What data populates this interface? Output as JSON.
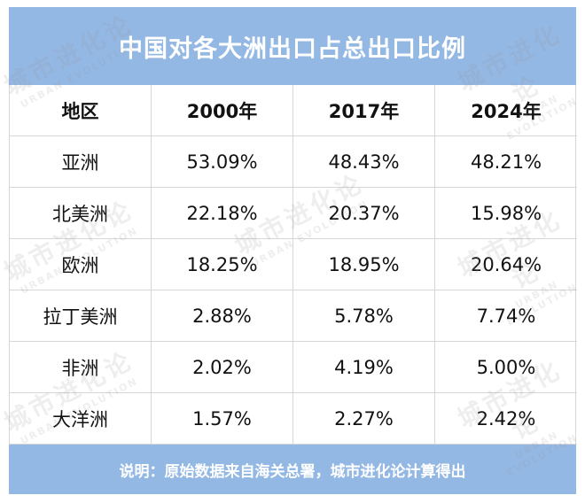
{
  "title": "中国对各大洲出口占总出口比例",
  "table": {
    "header": [
      "地区",
      "2000年",
      "2017年",
      "2024年"
    ],
    "rows": [
      [
        "亚洲",
        "53.09%",
        "48.43%",
        "48.21%"
      ],
      [
        "北美洲",
        "22.18%",
        "20.37%",
        "15.98%"
      ],
      [
        "欧洲",
        "18.25%",
        "18.95%",
        "20.64%"
      ],
      [
        "拉丁美洲",
        "2.88%",
        "5.78%",
        "7.74%"
      ],
      [
        "非洲",
        "2.02%",
        "4.19%",
        "5.00%"
      ],
      [
        "大洋洲",
        "1.57%",
        "2.27%",
        "2.42%"
      ]
    ]
  },
  "footer": "说明：原始数据来自海关总署，城市进化论计算得出",
  "watermark": {
    "name": "城市进化论",
    "subtitle": "URBAN EVOLUTION"
  }
}
